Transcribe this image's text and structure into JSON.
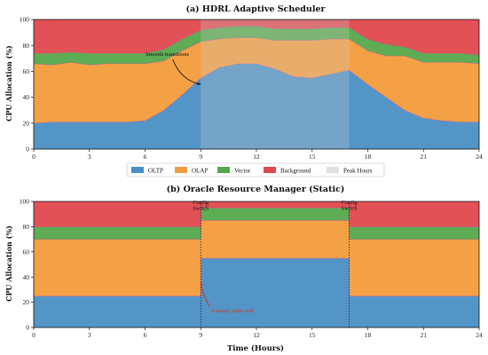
{
  "colors": {
    "oltp": "#4a8fc4",
    "olap": "#f39c3c",
    "vector": "#55a84a",
    "background": "#e0484d",
    "peak": "#cccccc",
    "annotation_red": "#c0392b"
  },
  "chart_data": [
    {
      "type": "area",
      "stacked": true,
      "title": "(a) HDRL Adaptive Scheduler",
      "xlabel": "",
      "ylabel": "CPU Allocation (%)",
      "xlim": [
        0,
        24
      ],
      "ylim": [
        0,
        100
      ],
      "xticks": [
        "0",
        "3",
        "6",
        "9",
        "12",
        "15",
        "18",
        "21",
        "24"
      ],
      "yticks": [
        "0",
        "20",
        "40",
        "60",
        "80",
        "100"
      ],
      "grid": false,
      "shaded_span": {
        "label": "Peak Hours",
        "x": [
          9,
          17
        ]
      },
      "x": [
        0,
        1,
        2,
        3,
        4,
        5,
        6,
        7,
        8,
        9,
        10,
        11,
        12,
        13,
        14,
        15,
        16,
        17,
        18,
        19,
        20,
        21,
        22,
        23,
        24
      ],
      "series": [
        {
          "name": "OLTP",
          "values": [
            20,
            21,
            21,
            21,
            21,
            21,
            22,
            30,
            42,
            55,
            63,
            66,
            66,
            62,
            56,
            55,
            58,
            61,
            50,
            40,
            30,
            24,
            22,
            21,
            21
          ]
        },
        {
          "name": "OLAP",
          "values": [
            46,
            44,
            46,
            44,
            45,
            45,
            44,
            38,
            34,
            28,
            22,
            20,
            20,
            22,
            28,
            29,
            27,
            24,
            26,
            32,
            42,
            43,
            45,
            46,
            45
          ]
        },
        {
          "name": "Vector",
          "values": [
            8,
            9,
            8,
            9,
            8,
            8,
            8,
            9,
            9,
            9,
            9,
            9,
            9,
            9,
            9,
            9,
            9,
            9,
            9,
            9,
            7,
            7,
            7,
            7,
            7
          ]
        },
        {
          "name": "Background",
          "values": [
            26,
            26,
            25,
            26,
            26,
            26,
            26,
            23,
            15,
            8,
            6,
            5,
            5,
            7,
            7,
            7,
            6,
            6,
            15,
            19,
            21,
            26,
            26,
            26,
            27
          ]
        }
      ],
      "annotations": [
        {
          "text": "Smooth transitions",
          "x": 7.2,
          "y": 72,
          "arrow_to": [
            9,
            50
          ]
        }
      ]
    },
    {
      "type": "area",
      "stacked": true,
      "title": "(b) Oracle Resource Manager (Static)",
      "xlabel": "Time (Hours)",
      "ylabel": "CPU Allocation (%)",
      "xlim": [
        0,
        24
      ],
      "ylim": [
        0,
        100
      ],
      "xticks": [
        "0",
        "3",
        "6",
        "9",
        "12",
        "15",
        "18",
        "21",
        "24"
      ],
      "yticks": [
        "0",
        "20",
        "40",
        "60",
        "80",
        "100"
      ],
      "grid": false,
      "x": [
        0,
        8.99,
        9.01,
        16.99,
        17.01,
        24
      ],
      "series": [
        {
          "name": "OLTP",
          "values": [
            25,
            25,
            55,
            55,
            25,
            25
          ]
        },
        {
          "name": "OLAP",
          "values": [
            45,
            45,
            30,
            30,
            45,
            45
          ]
        },
        {
          "name": "Vector",
          "values": [
            10,
            10,
            10,
            10,
            10,
            10
          ]
        },
        {
          "name": "Background",
          "values": [
            20,
            20,
            5,
            5,
            20,
            20
          ]
        }
      ],
      "vlines": [
        9,
        17
      ],
      "annotations": [
        {
          "text": "Config\nSwitch",
          "x": 9,
          "y": 100
        },
        {
          "text": "Config\nSwitch",
          "x": 17,
          "y": 100
        },
        {
          "text": "Latency spike risk",
          "x": 9.6,
          "y": 12,
          "arrow_to": [
            9,
            36
          ]
        }
      ]
    }
  ],
  "legend": {
    "placement": "between panels",
    "items": [
      {
        "label": "OLTP",
        "color_key": "oltp"
      },
      {
        "label": "OLAP",
        "color_key": "olap"
      },
      {
        "label": "Vector",
        "color_key": "vector"
      },
      {
        "label": "Background",
        "color_key": "background"
      },
      {
        "label": "Peak Hours",
        "color_key": "peak"
      }
    ]
  }
}
